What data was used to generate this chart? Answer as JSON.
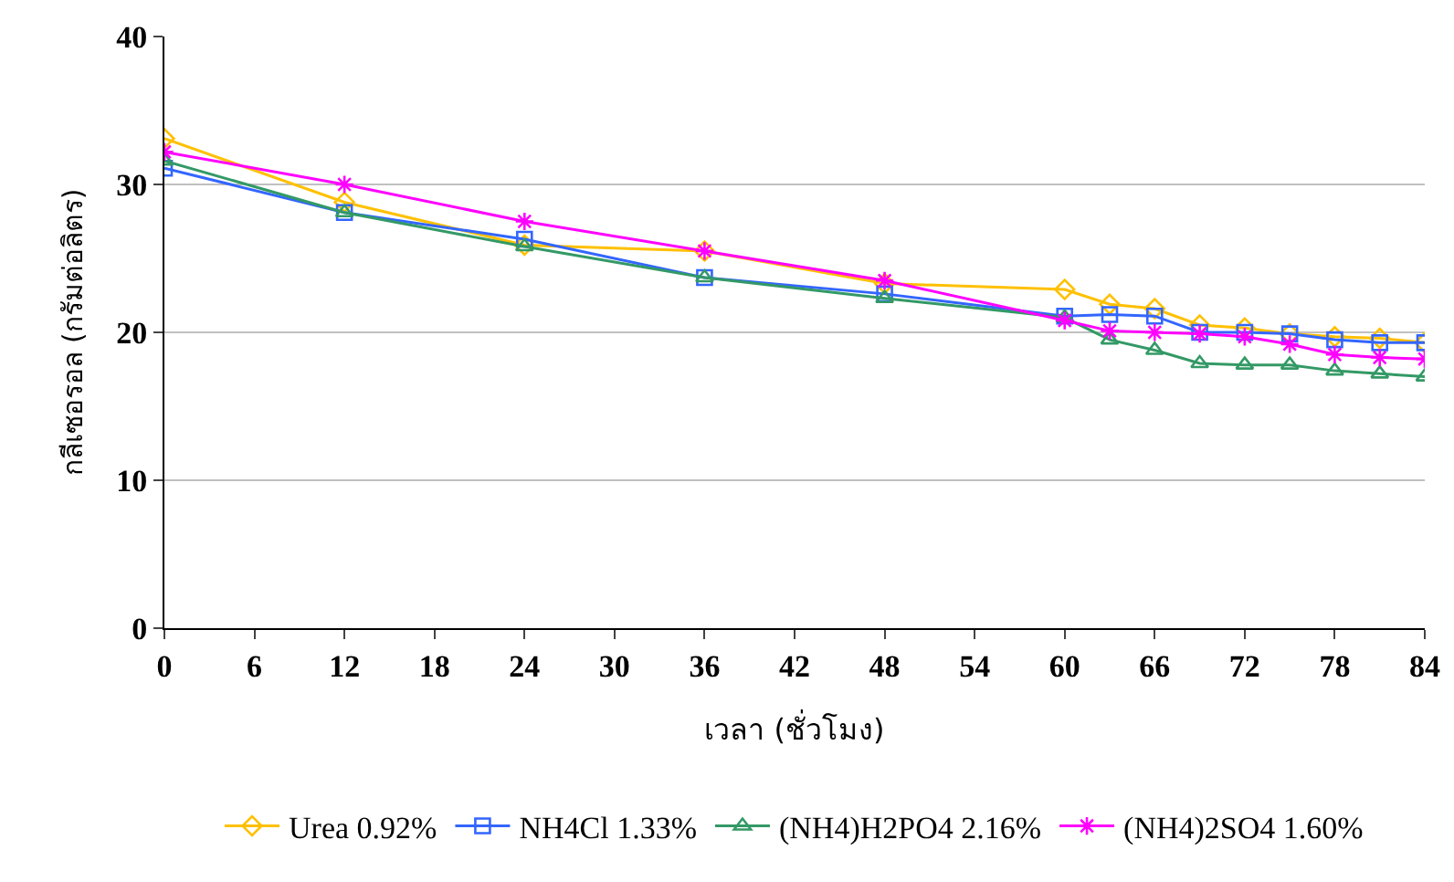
{
  "chart_data": {
    "type": "line",
    "xlabel": "เวลา (ชั่วโมง)",
    "ylabel": "กลีเซอรอล (กรัมต่อลิตร)",
    "x": [
      0,
      12,
      24,
      36,
      48,
      60,
      63,
      66,
      69,
      72,
      75,
      78,
      81,
      84
    ],
    "xlim": [
      0,
      84
    ],
    "xticks": [
      0,
      6,
      12,
      18,
      24,
      30,
      36,
      42,
      48,
      54,
      60,
      66,
      72,
      78,
      84
    ],
    "ylim": [
      0,
      40
    ],
    "yticks": [
      0,
      10,
      20,
      30,
      40
    ],
    "grid": "y",
    "legend": "bottom",
    "series": [
      {
        "name": "Urea 0.92%",
        "color": "#ffc000",
        "marker": "diamond",
        "values": [
          33.1,
          28.8,
          25.9,
          25.5,
          23.3,
          22.9,
          21.9,
          21.6,
          20.5,
          20.3,
          19.9,
          19.7,
          19.6,
          19.3
        ]
      },
      {
        "name": "NH4Cl 1.33%",
        "color": "#3366ff",
        "marker": "square",
        "values": [
          31.1,
          28.1,
          26.3,
          23.7,
          22.6,
          21.1,
          21.2,
          21.1,
          20.0,
          20.0,
          19.9,
          19.5,
          19.3,
          19.3
        ]
      },
      {
        "name": "(NH4)H2PO4 2.16%",
        "color": "#339966",
        "marker": "triangle",
        "values": [
          31.6,
          28.1,
          25.8,
          23.7,
          22.3,
          21.0,
          19.5,
          18.8,
          17.9,
          17.8,
          17.8,
          17.4,
          17.2,
          17.0
        ]
      },
      {
        "name": "(NH4)2SO4 1.60%",
        "color": "#ff00ff",
        "marker": "cross",
        "values": [
          32.2,
          30.0,
          27.5,
          25.5,
          23.5,
          20.8,
          20.1,
          20.0,
          19.9,
          19.7,
          19.2,
          18.5,
          18.3,
          18.2
        ]
      }
    ]
  }
}
